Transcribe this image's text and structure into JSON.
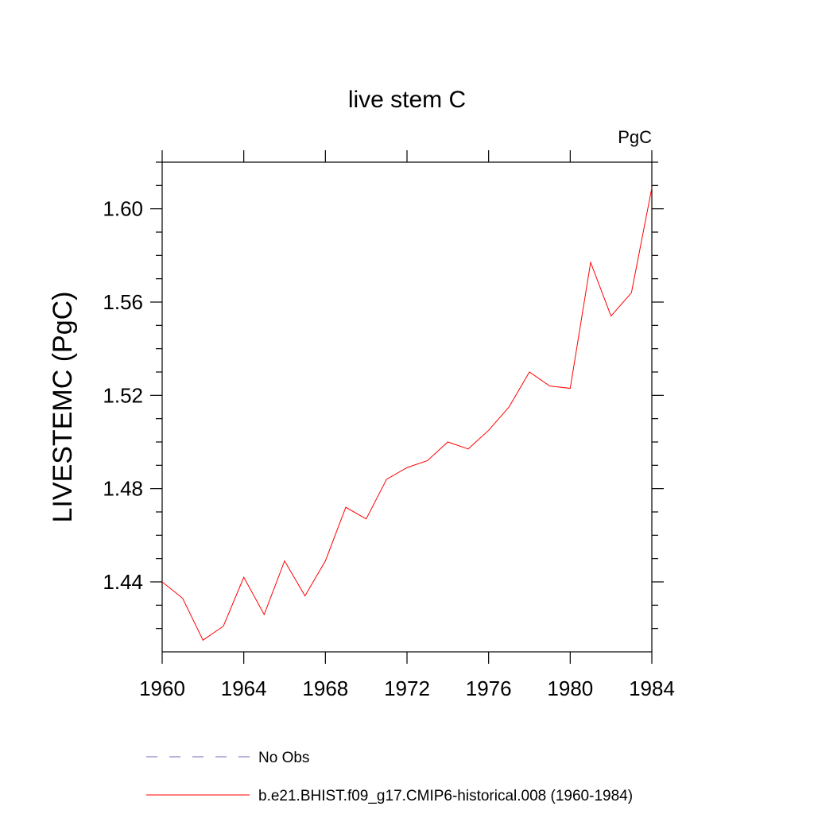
{
  "chart_data": {
    "type": "line",
    "title": "live stem C",
    "units_label": "PgC",
    "xlabel": "",
    "ylabel": "LIVESTEMC  (PgC)",
    "xlim": [
      1960,
      1984
    ],
    "ylim": [
      1.41,
      1.62
    ],
    "x_ticks": [
      1960,
      1964,
      1968,
      1972,
      1976,
      1980,
      1984
    ],
    "x_tick_labels": [
      "1960",
      "1964",
      "1968",
      "1972",
      "1976",
      "1980",
      "1984"
    ],
    "y_ticks": [
      1.44,
      1.48,
      1.52,
      1.56,
      1.6
    ],
    "y_tick_labels": [
      "1.44",
      "1.48",
      "1.52",
      "1.56",
      "1.60"
    ],
    "grid": false,
    "legend_position": "bottom",
    "series": [
      {
        "name": "No Obs",
        "color": "#6a6ab8",
        "style": "dashed",
        "x": [],
        "values": []
      },
      {
        "name": "b.e21.BHIST.f09_g17.CMIP6-historical.008 (1960-1984)",
        "color": "#ff0000",
        "style": "solid",
        "x": [
          1960,
          1961,
          1962,
          1963,
          1964,
          1965,
          1966,
          1967,
          1968,
          1969,
          1970,
          1971,
          1972,
          1973,
          1974,
          1975,
          1976,
          1977,
          1978,
          1979,
          1980,
          1981,
          1982,
          1983,
          1984
        ],
        "values": [
          1.44,
          1.433,
          1.415,
          1.421,
          1.442,
          1.426,
          1.449,
          1.434,
          1.449,
          1.472,
          1.467,
          1.484,
          1.489,
          1.492,
          1.5,
          1.497,
          1.505,
          1.515,
          1.53,
          1.524,
          1.523,
          1.577,
          1.554,
          1.564,
          1.609
        ]
      }
    ]
  }
}
